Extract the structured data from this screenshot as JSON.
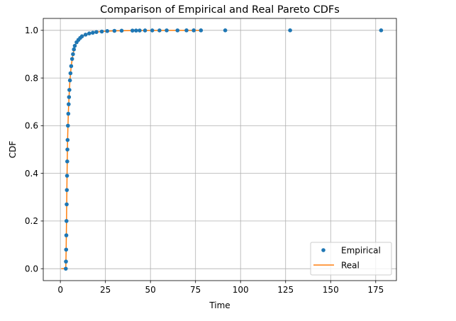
{
  "chart_data": {
    "type": "line",
    "title": "Comparison of Empirical and Real Pareto CDFs",
    "xlabel": "Time",
    "ylabel": "CDF",
    "xlim": [
      -9.5,
      186.5
    ],
    "ylim": [
      -0.05,
      1.05
    ],
    "x_ticks": [
      0,
      25,
      50,
      75,
      100,
      125,
      150,
      175
    ],
    "x_tick_labels": [
      "0",
      "25",
      "50",
      "75",
      "100",
      "125",
      "150",
      "175"
    ],
    "y_ticks": [
      0.0,
      0.2,
      0.4,
      0.6,
      0.8,
      1.0
    ],
    "y_tick_labels": [
      "0.0",
      "0.2",
      "0.4",
      "0.6",
      "0.8",
      "1.0"
    ],
    "grid": true,
    "legend_position": "bottom-right",
    "colors": {
      "empirical": "#1f77b4",
      "real": "#ff7f0e"
    },
    "series": [
      {
        "name": "Empirical",
        "style": "markers",
        "points": [
          [
            3.0,
            0.0
          ],
          [
            3.1,
            0.03
          ],
          [
            3.2,
            0.08
          ],
          [
            3.3,
            0.14
          ],
          [
            3.4,
            0.2
          ],
          [
            3.5,
            0.27
          ],
          [
            3.6,
            0.33
          ],
          [
            3.7,
            0.39
          ],
          [
            3.8,
            0.45
          ],
          [
            3.9,
            0.5
          ],
          [
            4.0,
            0.54
          ],
          [
            4.2,
            0.6
          ],
          [
            4.4,
            0.65
          ],
          [
            4.6,
            0.69
          ],
          [
            4.8,
            0.72
          ],
          [
            5.0,
            0.75
          ],
          [
            5.3,
            0.79
          ],
          [
            5.6,
            0.82
          ],
          [
            6.0,
            0.85
          ],
          [
            6.5,
            0.88
          ],
          [
            7.0,
            0.9
          ],
          [
            7.5,
            0.92
          ],
          [
            8.0,
            0.935
          ],
          [
            9.0,
            0.95
          ],
          [
            10.0,
            0.96
          ],
          [
            11.0,
            0.968
          ],
          [
            12.0,
            0.975
          ],
          [
            14.0,
            0.982
          ],
          [
            16.0,
            0.987
          ],
          [
            18.0,
            0.99
          ],
          [
            20.0,
            0.993
          ],
          [
            23.0,
            0.995
          ],
          [
            26.0,
            0.997
          ],
          [
            30.0,
            0.998
          ],
          [
            34.0,
            0.9985
          ],
          [
            40.0,
            0.999
          ],
          [
            42.0,
            0.9992
          ],
          [
            44.0,
            0.9994
          ],
          [
            47.0,
            0.9995
          ],
          [
            51.0,
            0.9996
          ],
          [
            55.0,
            0.9997
          ],
          [
            59.0,
            0.9998
          ],
          [
            65.0,
            0.9998
          ],
          [
            70.0,
            0.9999
          ],
          [
            74.0,
            0.9999
          ],
          [
            78.0,
            0.9999
          ],
          [
            91.5,
            1.0
          ],
          [
            127.5,
            1.0
          ],
          [
            178.0,
            1.0
          ]
        ]
      },
      {
        "name": "Real",
        "style": "line",
        "points": [
          [
            0.5,
            0.0
          ],
          [
            3.0,
            0.0
          ],
          [
            3.2,
            0.08
          ],
          [
            3.4,
            0.2
          ],
          [
            3.6,
            0.33
          ],
          [
            3.8,
            0.45
          ],
          [
            4.0,
            0.54
          ],
          [
            4.4,
            0.65
          ],
          [
            4.8,
            0.72
          ],
          [
            5.3,
            0.79
          ],
          [
            6.0,
            0.85
          ],
          [
            7.0,
            0.9
          ],
          [
            8.0,
            0.935
          ],
          [
            10.0,
            0.96
          ],
          [
            12.0,
            0.975
          ],
          [
            15.0,
            0.985
          ],
          [
            20.0,
            0.993
          ],
          [
            25.0,
            0.996
          ],
          [
            30.0,
            0.998
          ],
          [
            40.0,
            0.999
          ],
          [
            50.0,
            0.9996
          ],
          [
            60.0,
            0.9998
          ],
          [
            70.0,
            0.9999
          ],
          [
            78.0,
            1.0
          ]
        ]
      }
    ]
  }
}
